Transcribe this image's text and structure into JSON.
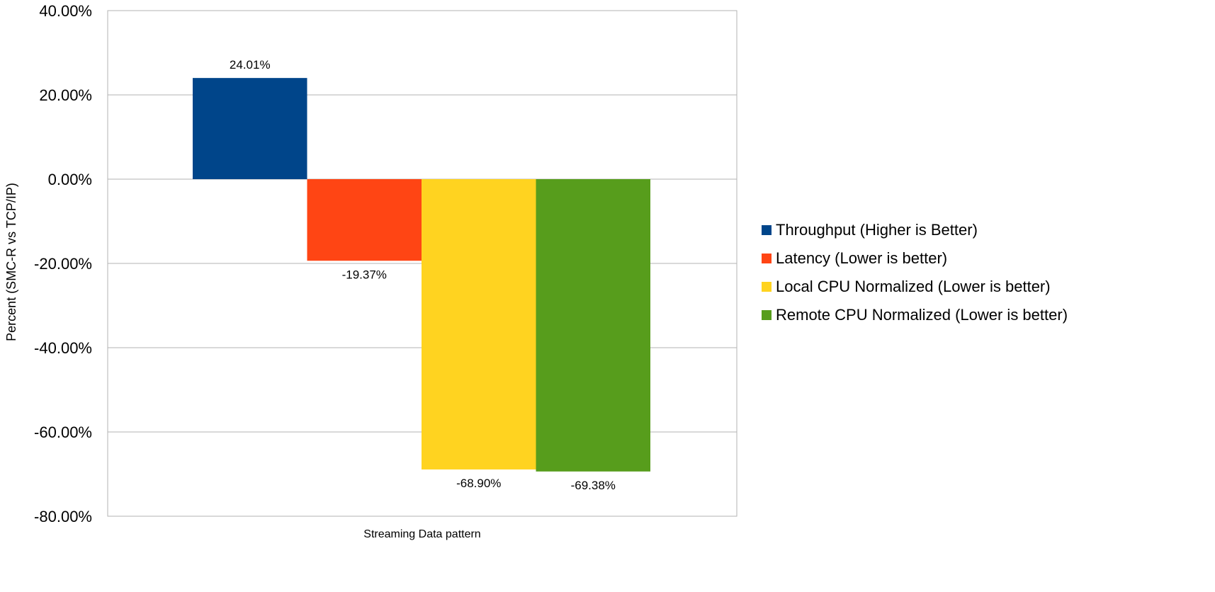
{
  "chart_data": {
    "type": "bar",
    "categories": [
      "Streaming Data pattern"
    ],
    "series": [
      {
        "name": "Throughput (Higher is Better)",
        "values": [
          24.01
        ],
        "color": "#00458a",
        "label": "24.01%"
      },
      {
        "name": "Latency (Lower is better)",
        "values": [
          -19.37
        ],
        "color": "#ff4514",
        "label": "-19.37%"
      },
      {
        "name": "Local CPU Normalized (Lower is better)",
        "values": [
          -68.9
        ],
        "color": "#ffd320",
        "label": "-68.90%"
      },
      {
        "name": "Remote CPU Normalized (Lower is better)",
        "values": [
          -69.38
        ],
        "color": "#579d1c",
        "label": "-69.38%"
      }
    ],
    "ylabel": "Percent (SMC-R vs TCP/IP)",
    "xlabel": "",
    "ylim": [
      -80,
      40
    ],
    "yticks": [
      40,
      20,
      0,
      -20,
      -40,
      -60,
      -80
    ],
    "ytick_labels": [
      "40.00%",
      "20.00%",
      "0.00%",
      "-20.00%",
      "-40.00%",
      "-60.00%",
      "-80.00%"
    ],
    "grid": true,
    "legend_position": "right"
  }
}
